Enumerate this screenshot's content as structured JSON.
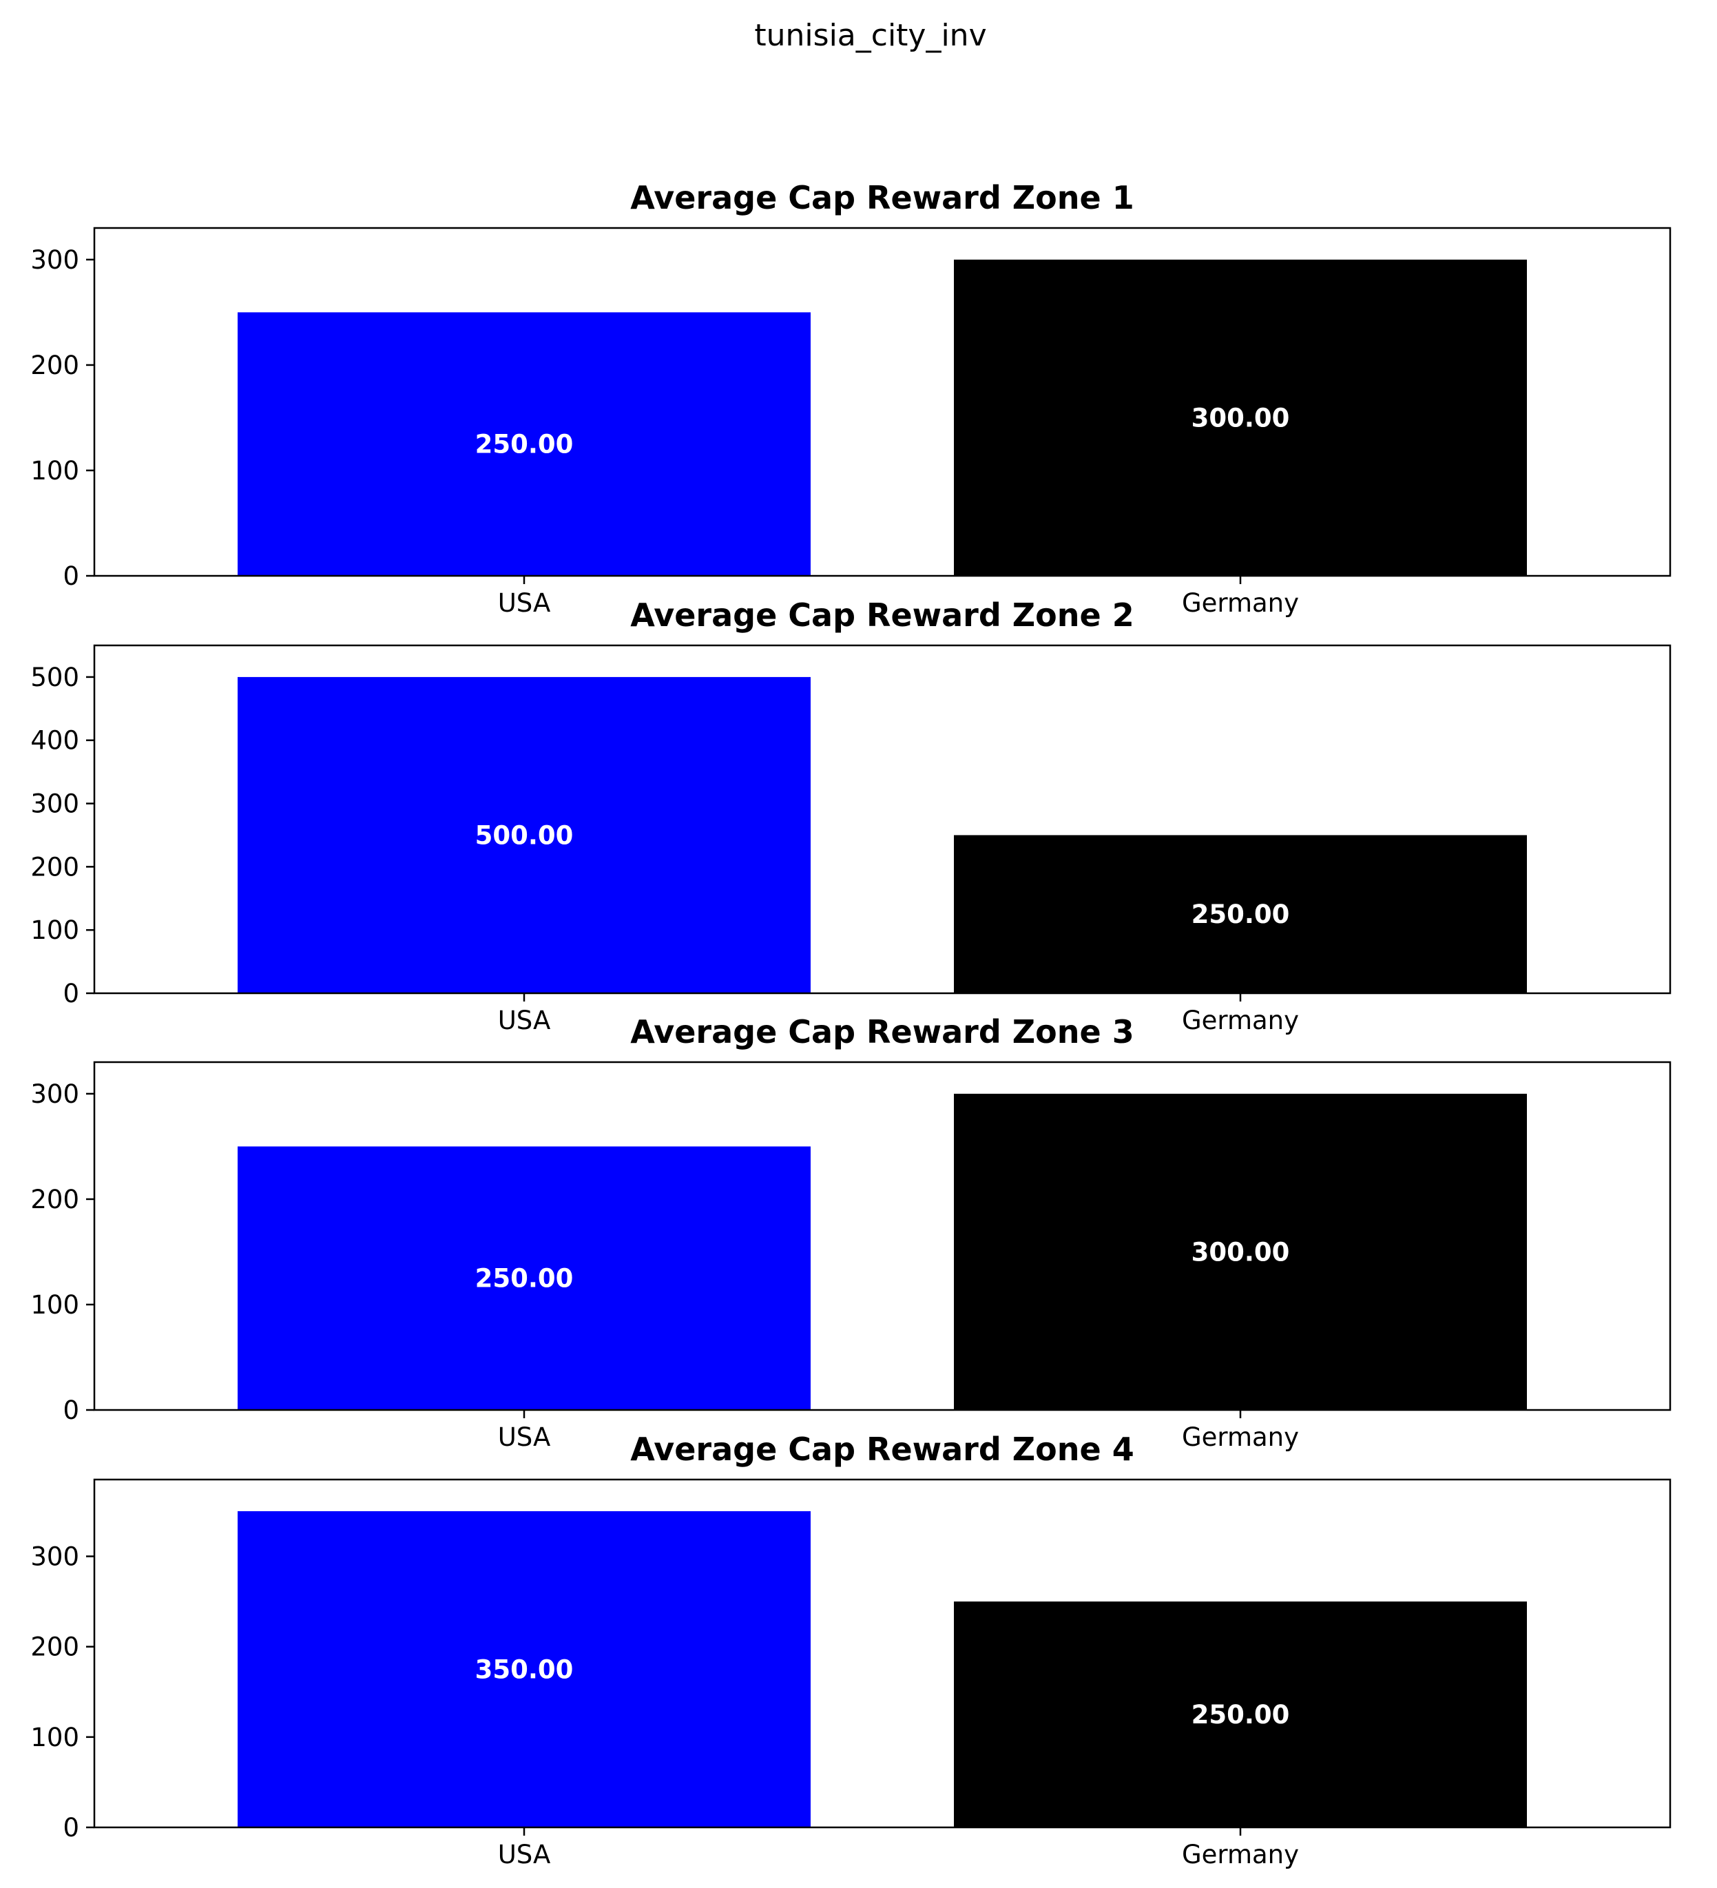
{
  "figure": {
    "suptitle": "tunisia_city_inv"
  },
  "chart_data": [
    {
      "type": "bar",
      "title": "Average Cap Reward Zone 1",
      "categories": [
        "USA",
        "Germany"
      ],
      "values": [
        250,
        300
      ],
      "value_labels": [
        "250.00",
        "300.00"
      ],
      "colors": [
        "#0000ff",
        "#000000"
      ],
      "yticks": [
        0,
        100,
        200,
        300
      ],
      "ylim": [
        0,
        330
      ],
      "xlabel": "",
      "ylabel": "",
      "grid": false
    },
    {
      "type": "bar",
      "title": "Average Cap Reward Zone 2",
      "categories": [
        "USA",
        "Germany"
      ],
      "values": [
        500,
        250
      ],
      "value_labels": [
        "500.00",
        "250.00"
      ],
      "colors": [
        "#0000ff",
        "#000000"
      ],
      "yticks": [
        0,
        100,
        200,
        300,
        400,
        500
      ],
      "ylim": [
        0,
        550
      ],
      "xlabel": "",
      "ylabel": "",
      "grid": false
    },
    {
      "type": "bar",
      "title": "Average Cap Reward Zone 3",
      "categories": [
        "USA",
        "Germany"
      ],
      "values": [
        250,
        300
      ],
      "value_labels": [
        "250.00",
        "300.00"
      ],
      "colors": [
        "#0000ff",
        "#000000"
      ],
      "yticks": [
        0,
        100,
        200,
        300
      ],
      "ylim": [
        0,
        330
      ],
      "xlabel": "",
      "ylabel": "",
      "grid": false
    },
    {
      "type": "bar",
      "title": "Average Cap Reward Zone 4",
      "categories": [
        "USA",
        "Germany"
      ],
      "values": [
        350,
        250
      ],
      "value_labels": [
        "350.00",
        "250.00"
      ],
      "colors": [
        "#0000ff",
        "#000000"
      ],
      "yticks": [
        0,
        100,
        200,
        300
      ],
      "ylim": [
        0,
        385
      ],
      "xlabel": "",
      "ylabel": "",
      "grid": false
    }
  ]
}
